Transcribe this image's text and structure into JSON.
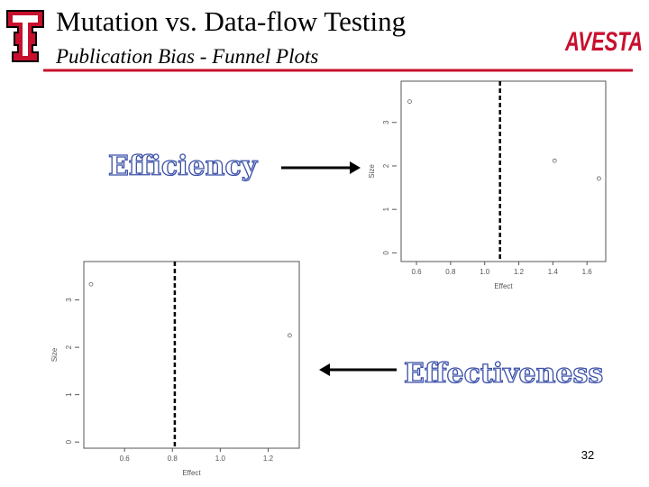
{
  "slide": {
    "title": "Mutation vs. Data-flow Testing",
    "subtitle": "Publication Bias - Funnel Plots",
    "logo_text": "AVESTA",
    "label_top": "Efficiency",
    "label_bottom": "Effectiveness",
    "page_number": "32"
  },
  "chart_data": [
    {
      "type": "scatter",
      "x_label": "Effect",
      "y_label": "Size",
      "x": [
        0.56,
        1.41,
        1.67
      ],
      "values": [
        3.48,
        2.12,
        1.71
      ],
      "mean_effect": 1.09,
      "xlim": [
        0.51,
        1.71
      ],
      "ylim": [
        -0.2,
        3.95
      ],
      "xticks": [
        0.6,
        0.8,
        {
          "value": 1,
          "label": "1.0"
        },
        1.2,
        1.4,
        1.6
      ],
      "yticks": [
        0,
        1,
        2,
        3
      ]
    },
    {
      "type": "scatter",
      "x_label": "Effect",
      "y_label": "Size",
      "x": [
        0.46,
        1.29
      ],
      "values": [
        3.33,
        2.25
      ],
      "mean_effect": 0.81,
      "xlim": [
        0.43,
        1.33
      ],
      "ylim": [
        -0.13,
        3.81
      ],
      "xticks": [
        0.6,
        0.8,
        {
          "value": 1,
          "label": "1.0"
        },
        1.2
      ],
      "yticks": [
        0,
        1,
        2,
        3
      ]
    }
  ]
}
